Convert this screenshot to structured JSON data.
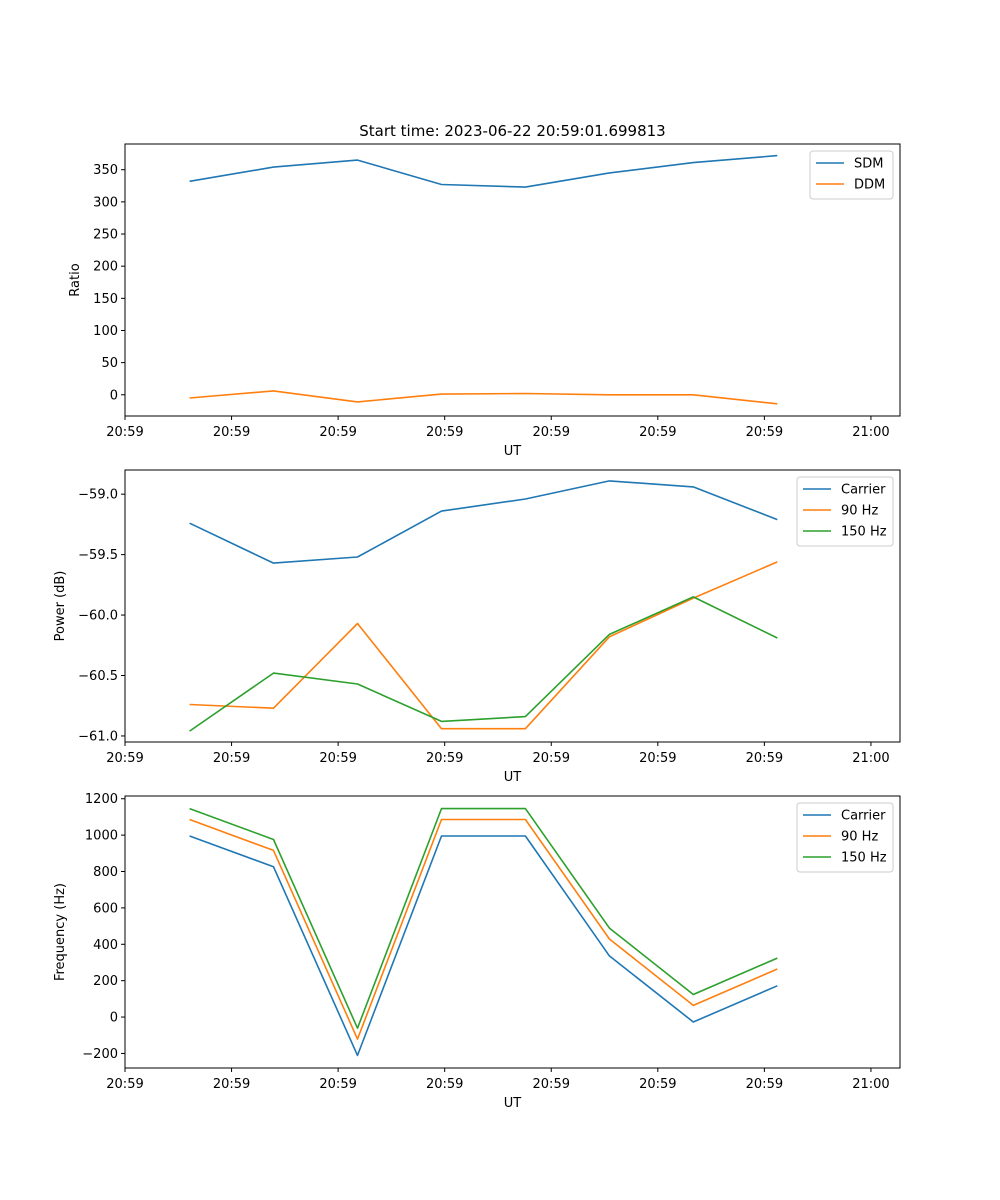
{
  "figure_title": "Start time: 2023-06-22 20:59:01.699813",
  "chart_data": [
    {
      "type": "line",
      "title": "Start time: 2023-06-22 20:59:01.699813",
      "xlabel": "UT",
      "ylabel": "Ratio",
      "x_tick_labels": [
        "20:59",
        "20:59",
        "20:59",
        "20:59",
        "20:59",
        "20:59",
        "20:59",
        "21:00"
      ],
      "y_ticks": [
        0,
        50,
        100,
        150,
        200,
        250,
        300,
        350
      ],
      "y_tick_labels": [
        "0",
        "50",
        "100",
        "150",
        "200",
        "250",
        "300",
        "350"
      ],
      "xlim": [
        0,
        12
      ],
      "ylim": [
        -33,
        390
      ],
      "x": [
        1,
        2.3,
        3.6,
        4.9,
        6.2,
        7.5,
        8.8,
        10.1
      ],
      "legend_position": "top-right",
      "grid": false,
      "series": [
        {
          "name": "SDM",
          "color": "#1f77b4",
          "values": [
            332,
            354,
            365,
            327,
            323,
            345,
            361,
            372
          ]
        },
        {
          "name": "DDM",
          "color": "#ff7f0e",
          "values": [
            -5,
            6,
            -11,
            1,
            2,
            0,
            0,
            -14
          ]
        }
      ]
    },
    {
      "type": "line",
      "title": "",
      "xlabel": "UT",
      "ylabel": "Power (dB)",
      "x_tick_labels": [
        "20:59",
        "20:59",
        "20:59",
        "20:59",
        "20:59",
        "20:59",
        "20:59",
        "21:00"
      ],
      "y_ticks": [
        -61.0,
        -60.5,
        -60.0,
        -59.5,
        -59.0
      ],
      "y_tick_labels": [
        "−61.0",
        "−60.5",
        "−60.0",
        "−59.5",
        "−59.0"
      ],
      "xlim": [
        0,
        12
      ],
      "ylim": [
        -61.05,
        -58.8
      ],
      "x": [
        1,
        2.3,
        3.6,
        4.9,
        6.2,
        7.5,
        8.8,
        10.1
      ],
      "legend_position": "top-right",
      "grid": false,
      "series": [
        {
          "name": "Carrier",
          "color": "#1f77b4",
          "values": [
            -59.24,
            -59.57,
            -59.52,
            -59.14,
            -59.04,
            -58.89,
            -58.94,
            -59.21
          ]
        },
        {
          "name": "90 Hz",
          "color": "#ff7f0e",
          "values": [
            -60.74,
            -60.77,
            -60.07,
            -60.94,
            -60.94,
            -60.18,
            -59.86,
            -59.56
          ]
        },
        {
          "name": "150 Hz",
          "color": "#2ca02c",
          "values": [
            -60.96,
            -60.48,
            -60.57,
            -60.88,
            -60.84,
            -60.16,
            -59.85,
            -60.19
          ]
        }
      ]
    },
    {
      "type": "line",
      "title": "",
      "xlabel": "UT",
      "ylabel": "Frequency (Hz)",
      "x_tick_labels": [
        "20:59",
        "20:59",
        "20:59",
        "20:59",
        "20:59",
        "20:59",
        "20:59",
        "21:00"
      ],
      "y_ticks": [
        -200,
        0,
        200,
        400,
        600,
        800,
        1000,
        1200
      ],
      "y_tick_labels": [
        "−200",
        "0",
        "200",
        "400",
        "600",
        "800",
        "1000",
        "1200"
      ],
      "xlim": [
        0,
        12
      ],
      "ylim": [
        -280,
        1215
      ],
      "x": [
        1,
        2.3,
        3.6,
        4.9,
        6.2,
        7.5,
        8.8,
        10.1
      ],
      "legend_position": "top-right",
      "grid": false,
      "series": [
        {
          "name": "Carrier",
          "color": "#1f77b4",
          "values": [
            995,
            826,
            -211,
            995,
            995,
            336,
            -27,
            172
          ]
        },
        {
          "name": "90 Hz",
          "color": "#ff7f0e",
          "values": [
            1086,
            916,
            -121,
            1086,
            1086,
            429,
            64,
            264
          ]
        },
        {
          "name": "150 Hz",
          "color": "#2ca02c",
          "values": [
            1146,
            976,
            -61,
            1146,
            1146,
            489,
            124,
            324
          ]
        }
      ]
    }
  ]
}
